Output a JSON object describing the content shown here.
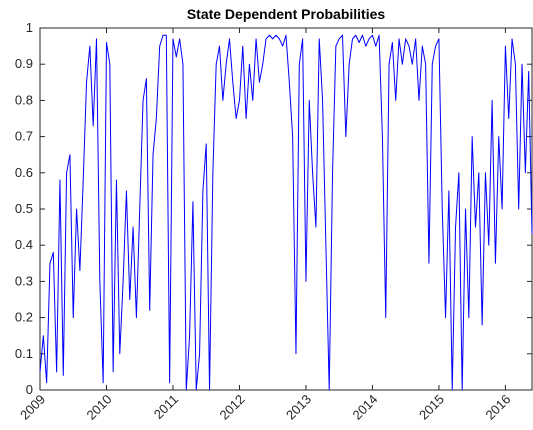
{
  "chart_data": {
    "type": "line",
    "title": "State Dependent Probabilities",
    "x": [
      2009,
      2009.05,
      2009.1,
      2009.15,
      2009.2,
      2009.25,
      2009.3,
      2009.35,
      2009.4,
      2009.45,
      2009.5,
      2009.55,
      2009.6,
      2009.65,
      2009.7,
      2009.75,
      2009.8,
      2009.85,
      2009.9,
      2009.95,
      2010,
      2010.05,
      2010.1,
      2010.15,
      2010.2,
      2010.25,
      2010.3,
      2010.35,
      2010.4,
      2010.45,
      2010.5,
      2010.55,
      2010.6,
      2010.65,
      2010.7,
      2010.75,
      2010.8,
      2010.85,
      2010.9,
      2010.95,
      2011,
      2011.05,
      2011.1,
      2011.15,
      2011.2,
      2011.25,
      2011.3,
      2011.35,
      2011.4,
      2011.45,
      2011.5,
      2011.55,
      2011.6,
      2011.65,
      2011.7,
      2011.75,
      2011.8,
      2011.85,
      2011.9,
      2011.95,
      2012,
      2012.05,
      2012.1,
      2012.15,
      2012.2,
      2012.25,
      2012.3,
      2012.35,
      2012.4,
      2012.45,
      2012.5,
      2012.55,
      2012.6,
      2012.65,
      2012.7,
      2012.75,
      2012.8,
      2012.85,
      2012.9,
      2012.95,
      2013,
      2013.05,
      2013.1,
      2013.15,
      2013.2,
      2013.25,
      2013.3,
      2013.35,
      2013.4,
      2013.45,
      2013.5,
      2013.55,
      2013.6,
      2013.65,
      2013.7,
      2013.75,
      2013.8,
      2013.85,
      2013.9,
      2013.95,
      2014,
      2014.05,
      2014.1,
      2014.15,
      2014.2,
      2014.25,
      2014.3,
      2014.35,
      2014.4,
      2014.45,
      2014.5,
      2014.55,
      2014.6,
      2014.65,
      2014.7,
      2014.75,
      2014.8,
      2014.85,
      2014.9,
      2014.95,
      2015,
      2015.05,
      2015.1,
      2015.15,
      2015.2,
      2015.25,
      2015.3,
      2015.35,
      2015.4,
      2015.45,
      2015.5,
      2015.55,
      2015.6,
      2015.65,
      2015.7,
      2015.75,
      2015.8,
      2015.85,
      2015.9,
      2015.95,
      2016,
      2016.05,
      2016.1,
      2016.15,
      2016.2,
      2016.25,
      2016.3,
      2016.35,
      2016.4
    ],
    "series": [
      {
        "color": "#0000ff",
        "values": [
          0.05,
          0.15,
          0.02,
          0.35,
          0.38,
          0.05,
          0.58,
          0.04,
          0.6,
          0.65,
          0.2,
          0.5,
          0.33,
          0.58,
          0.85,
          0.95,
          0.73,
          0.97,
          0.3,
          0.02,
          0.96,
          0.9,
          0.05,
          0.58,
          0.1,
          0.3,
          0.55,
          0.25,
          0.45,
          0.2,
          0.5,
          0.8,
          0.86,
          0.22,
          0.65,
          0.75,
          0.95,
          0.98,
          0.98,
          0.02,
          0.97,
          0.92,
          0.97,
          0.9,
          0.0,
          0.15,
          0.52,
          0.0,
          0.1,
          0.55,
          0.68,
          0.0,
          0.6,
          0.9,
          0.95,
          0.8,
          0.9,
          0.97,
          0.85,
          0.75,
          0.8,
          0.95,
          0.75,
          0.9,
          0.8,
          0.97,
          0.85,
          0.9,
          0.97,
          0.98,
          0.97,
          0.98,
          0.97,
          0.95,
          0.98,
          0.85,
          0.7,
          0.1,
          0.9,
          0.97,
          0.3,
          0.8,
          0.6,
          0.45,
          0.97,
          0.8,
          0.4,
          0.0,
          0.6,
          0.95,
          0.97,
          0.98,
          0.7,
          0.9,
          0.97,
          0.98,
          0.96,
          0.98,
          0.95,
          0.97,
          0.98,
          0.95,
          0.98,
          0.7,
          0.2,
          0.9,
          0.96,
          0.8,
          0.97,
          0.9,
          0.97,
          0.95,
          0.9,
          0.97,
          0.8,
          0.95,
          0.9,
          0.35,
          0.9,
          0.95,
          0.97,
          0.5,
          0.2,
          0.55,
          0.0,
          0.45,
          0.6,
          0.0,
          0.5,
          0.2,
          0.7,
          0.45,
          0.6,
          0.18,
          0.6,
          0.4,
          0.8,
          0.35,
          0.7,
          0.5,
          0.95,
          0.75,
          0.97,
          0.9,
          0.5,
          0.9,
          0.6,
          0.88,
          0.43
        ]
      }
    ],
    "xlim": [
      2009,
      2016.4
    ],
    "xticks": [
      2009,
      2010,
      2011,
      2012,
      2013,
      2014,
      2015,
      2016
    ],
    "ylim": [
      0,
      1
    ],
    "yticks": [
      0,
      0.1,
      0.2,
      0.3,
      0.4,
      0.5,
      0.6,
      0.7,
      0.8,
      0.9,
      1
    ]
  }
}
